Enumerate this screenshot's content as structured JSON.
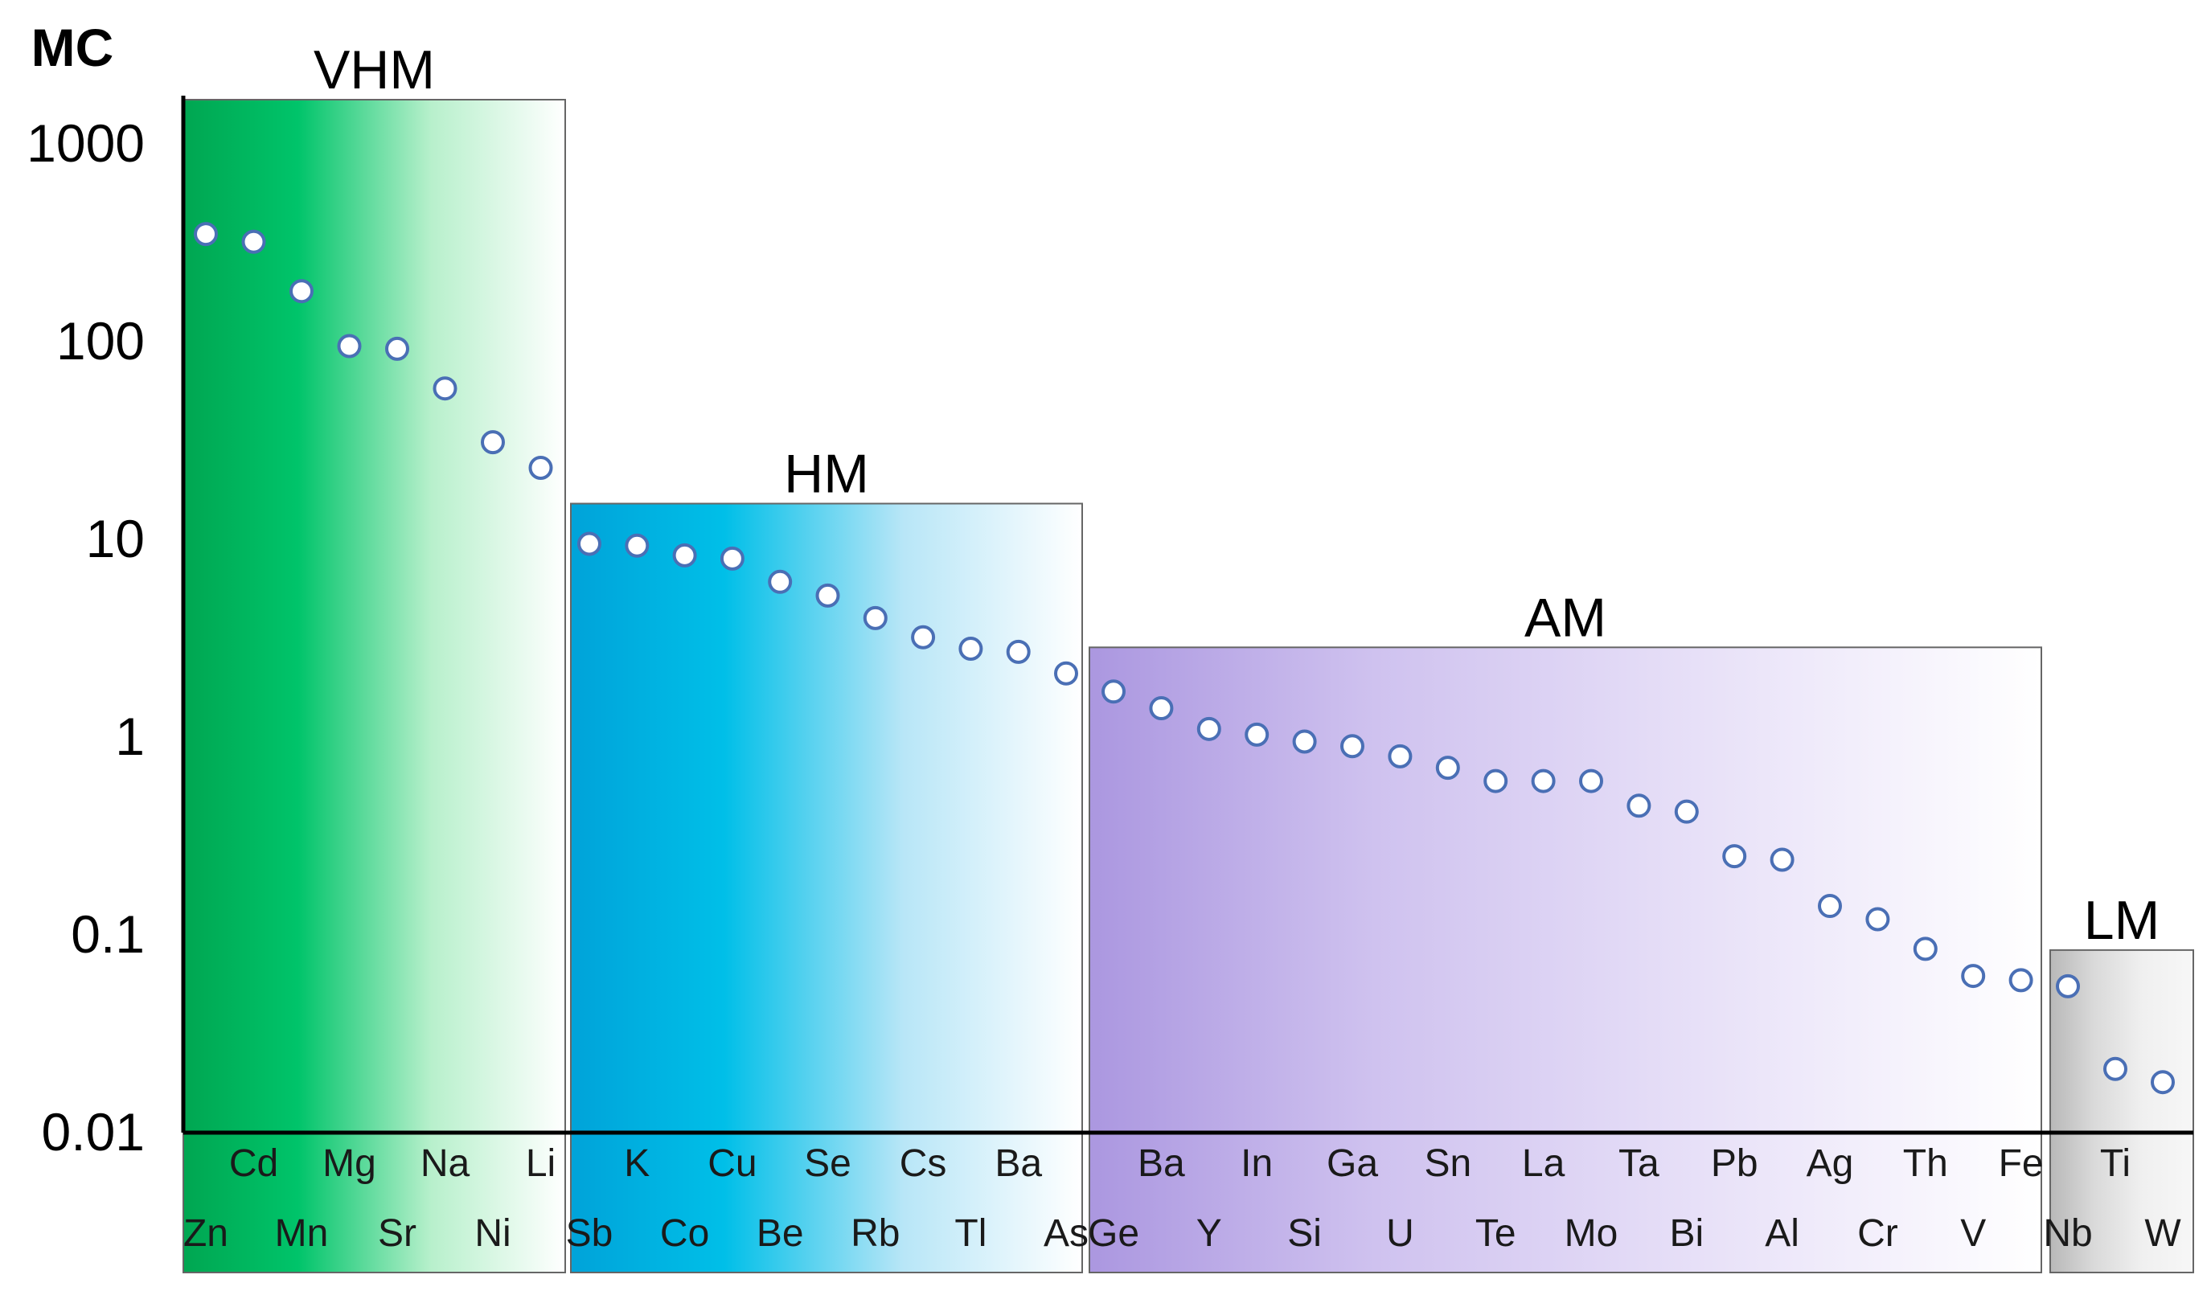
{
  "chart_data": {
    "type": "scatter",
    "ylabel": "MC",
    "yscale": "log",
    "ylim": [
      0.01,
      1000
    ],
    "yticks": [
      "1000",
      "100",
      "10",
      "1",
      "0.1",
      "0.01"
    ],
    "groups": [
      {
        "name": "VHM",
        "gradient": [
          "#00a651",
          "#00c46a",
          "#b8f0cc",
          "#ffffff"
        ],
        "elements": [
          "Zn",
          "Cd",
          "Mn",
          "Mg",
          "Sr",
          "Na",
          "Ni",
          "Li"
        ],
        "values": [
          350,
          320,
          180,
          95,
          92,
          58,
          31,
          23
        ]
      },
      {
        "name": "HM",
        "gradient": [
          "#00a3d9",
          "#00bfe8",
          "#b8e6f7",
          "#ffffff"
        ],
        "elements": [
          "Sb",
          "K",
          "Co",
          "Cu",
          "Be",
          "Se",
          "Rb",
          "Cs",
          "Tl",
          "Ba",
          "As"
        ],
        "values": [
          9.5,
          9.3,
          8.3,
          8.0,
          6.1,
          5.2,
          4.0,
          3.2,
          2.8,
          2.7,
          2.1
        ]
      },
      {
        "name": "AM",
        "gradient": [
          "#ab97e0",
          "#cfc2ef",
          "#e8e1f8",
          "#ffffff"
        ],
        "elements": [
          "Ge",
          "Ba",
          "Y",
          "In",
          "Si",
          "Ga",
          "U",
          "Sn",
          "Te",
          "La",
          "Mo",
          "Ta",
          "Bi",
          "Pb",
          "Al",
          "Ag",
          "Cr",
          "Th",
          "V",
          "Fe"
        ],
        "values": [
          1.7,
          1.4,
          1.1,
          1.03,
          0.95,
          0.9,
          0.8,
          0.7,
          0.6,
          0.6,
          0.6,
          0.45,
          0.42,
          0.25,
          0.24,
          0.14,
          0.12,
          0.085,
          0.062,
          0.059
        ]
      },
      {
        "name": "LM",
        "gradient": [
          "#b8b8b8",
          "#d9d9d9",
          "#f0f0f0",
          "#f7f7f7"
        ],
        "elements": [
          "Nb",
          "Ti",
          "W"
        ],
        "values": [
          0.055,
          0.021,
          0.018
        ]
      }
    ],
    "marker": {
      "fill": "#ffffff",
      "stroke": "#4a6fb5"
    }
  }
}
